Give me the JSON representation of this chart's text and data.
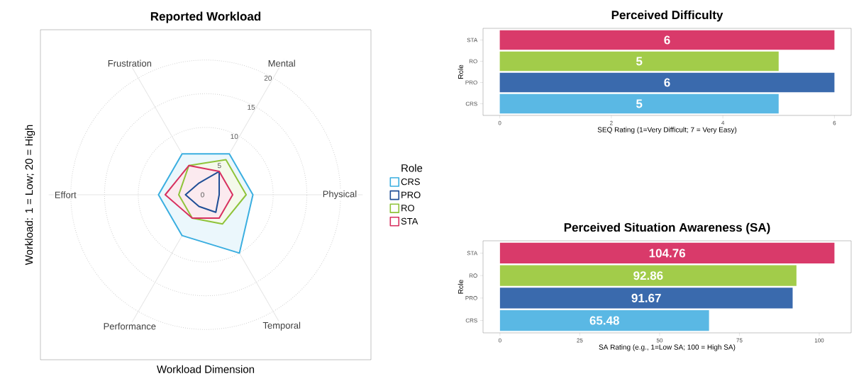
{
  "chart_data": [
    {
      "type": "radar",
      "title": "Reported Workload",
      "xlabel": "Workload Dimension",
      "ylabel": "Workload: 1 = Low; 20 = High",
      "legend_title": "Role",
      "legend": "right",
      "grid": true,
      "categories": [
        "Mental",
        "Physical",
        "Temporal",
        "Performance",
        "Effort",
        "Frustration"
      ],
      "ylim": [
        0,
        20
      ],
      "yticks": [
        0,
        5,
        10,
        15,
        20
      ],
      "series": [
        {
          "name": "CRS",
          "color": "#3aaee0",
          "values": [
            7,
            7,
            10,
            7,
            7,
            7
          ]
        },
        {
          "name": "PRO",
          "color": "#1f4e96",
          "values": [
            4,
            2,
            3,
            2,
            3,
            2
          ]
        },
        {
          "name": "RO",
          "color": "#8fc33a",
          "values": [
            6,
            6,
            5,
            4,
            4,
            5
          ]
        },
        {
          "name": "STA",
          "color": "#d7305f",
          "values": [
            4,
            4,
            4,
            4,
            6,
            5
          ]
        }
      ]
    },
    {
      "type": "bar",
      "orientation": "horizontal",
      "title": "Perceived Difficulty",
      "xlabel": "SEQ Rating (1=Very Difficult; 7 = Very Easy)",
      "ylabel": "Role",
      "categories": [
        "STA",
        "RO",
        "PRO",
        "CRS"
      ],
      "values": [
        6,
        5,
        6,
        5
      ],
      "colors": [
        "#d93a6a",
        "#a2cc4a",
        "#3a6aad",
        "#5ab8e4"
      ],
      "value_labels": [
        "6",
        "5",
        "6",
        "5"
      ],
      "xlim": [
        -0.3,
        6.3
      ],
      "xticks": [
        0,
        2,
        4,
        6
      ]
    },
    {
      "type": "bar",
      "orientation": "horizontal",
      "title": "Perceived Situation Awareness (SA)",
      "xlabel": "SA Rating (e.g., 1=Low SA; 100 = High SA)",
      "ylabel": "Role",
      "categories": [
        "STA",
        "RO",
        "PRO",
        "CRS"
      ],
      "values": [
        104.76,
        92.86,
        91.67,
        65.48
      ],
      "colors": [
        "#d93a6a",
        "#a2cc4a",
        "#3a6aad",
        "#5ab8e4"
      ],
      "value_labels": [
        "104.76",
        "92.86",
        "91.67",
        "65.48"
      ],
      "xlim": [
        -5.3,
        110
      ],
      "xticks": [
        0,
        25,
        50,
        75,
        100
      ]
    }
  ]
}
